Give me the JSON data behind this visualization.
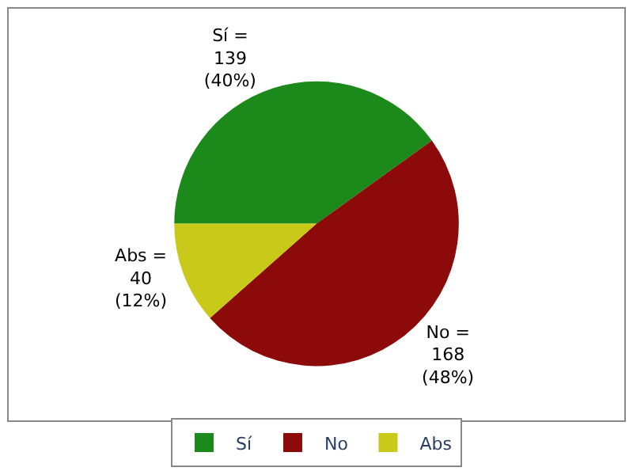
{
  "chart_data": {
    "type": "pie",
    "categories": [
      "Sí",
      "No",
      "Abs"
    ],
    "values": [
      139,
      168,
      40
    ],
    "colors": [
      "#1b8a1b",
      "#8c0a0a",
      "#c9c91a"
    ],
    "value_labels": [
      "Sí =\n139\n(40%)",
      "No =\n168\n(48%)",
      "Abs =\n40\n(12%)"
    ],
    "legend": "bottom"
  }
}
